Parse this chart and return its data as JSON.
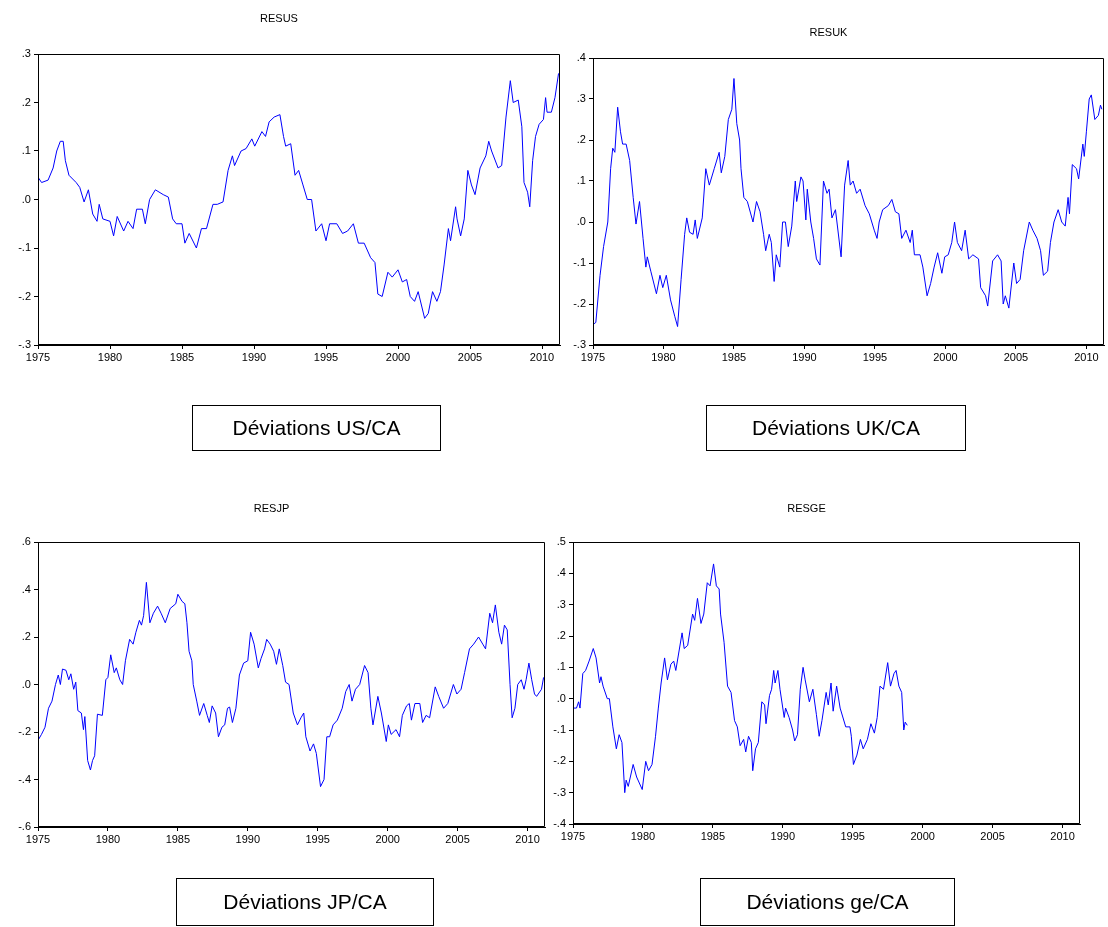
{
  "chart_data": [
    {
      "type": "line",
      "title": "RESUS",
      "annotations": [
        "Déviations US/CA"
      ],
      "color": "#0000ff",
      "xlim": [
        1975,
        2011.25
      ],
      "xticks": [
        1975,
        1980,
        1985,
        1990,
        1995,
        2000,
        2005,
        2010
      ],
      "ylim": [
        -0.3,
        0.3
      ],
      "yticks": [
        {
          "value": -0.3,
          "label": "-.3"
        },
        {
          "value": -0.2,
          "label": "-.2"
        },
        {
          "value": -0.1,
          "label": "-.1"
        },
        {
          "value": 0,
          "label": ".0"
        },
        {
          "value": 0.1,
          "label": ".1"
        },
        {
          "value": 0.2,
          "label": ".2"
        },
        {
          "value": 0.3,
          "label": ".3"
        }
      ],
      "x": [
        1975.0,
        1975.25,
        1975.7,
        1976.05,
        1976.3,
        1976.55,
        1976.75,
        1976.9,
        1977.15,
        1977.65,
        1977.9,
        1978.2,
        1978.5,
        1978.8,
        1979.1,
        1979.25,
        1979.5,
        1980.0,
        1980.25,
        1980.5,
        1980.95,
        1981.25,
        1981.6,
        1981.85,
        1982.25,
        1982.45,
        1982.75,
        1983.15,
        1983.7,
        1984.05,
        1984.35,
        1984.6,
        1985.0,
        1985.2,
        1985.5,
        1986.0,
        1986.35,
        1986.7,
        1987.15,
        1987.45,
        1987.85,
        1988.2,
        1988.5,
        1988.65,
        1989.1,
        1989.45,
        1989.85,
        1990.05,
        1990.55,
        1990.8,
        1991.05,
        1991.4,
        1991.8,
        1992.05,
        1992.2,
        1992.55,
        1992.85,
        1993.1,
        1993.4,
        1993.7,
        1994.0,
        1994.3,
        1994.7,
        1995.0,
        1995.25,
        1995.75,
        1996.15,
        1996.5,
        1996.9,
        1997.25,
        1997.65,
        1998.1,
        1998.4,
        1998.6,
        1998.9,
        1999.3,
        1999.6,
        2000.0,
        2000.3,
        2000.6,
        2000.85,
        2001.15,
        2001.4,
        2001.85,
        2002.1,
        2002.4,
        2002.7,
        2002.95,
        2003.2,
        2003.5,
        2003.65,
        2004.0,
        2004.1,
        2004.35,
        2004.6,
        2004.85,
        2005.1,
        2005.35,
        2005.7,
        2006.1,
        2006.3,
        2006.5,
        2006.95,
        2007.2,
        2007.5,
        2007.8,
        2008.0,
        2008.35,
        2008.6,
        2008.75,
        2009.0,
        2009.15,
        2009.35,
        2009.55,
        2009.8,
        2010.1,
        2010.25,
        2010.35,
        2010.65,
        2010.9,
        2011.15
      ],
      "values": [
        0.046,
        0.035,
        0.04,
        0.065,
        0.1,
        0.12,
        0.12,
        0.08,
        0.05,
        0.035,
        0.025,
        -0.005,
        0.02,
        -0.03,
        -0.045,
        -0.01,
        -0.04,
        -0.045,
        -0.075,
        -0.035,
        -0.065,
        -0.045,
        -0.06,
        -0.02,
        -0.02,
        -0.05,
        0.0,
        0.02,
        0.01,
        0.005,
        -0.04,
        -0.05,
        -0.05,
        -0.09,
        -0.07,
        -0.1,
        -0.06,
        -0.06,
        -0.01,
        -0.01,
        -0.005,
        0.06,
        0.09,
        0.07,
        0.1,
        0.105,
        0.125,
        0.11,
        0.14,
        0.13,
        0.16,
        0.17,
        0.175,
        0.13,
        0.11,
        0.115,
        0.05,
        0.06,
        0.03,
        0.0,
        0.0,
        -0.065,
        -0.05,
        -0.085,
        -0.05,
        -0.05,
        -0.07,
        -0.065,
        -0.05,
        -0.09,
        -0.09,
        -0.12,
        -0.13,
        -0.195,
        -0.2,
        -0.15,
        -0.16,
        -0.145,
        -0.17,
        -0.165,
        -0.2,
        -0.21,
        -0.19,
        -0.245,
        -0.235,
        -0.19,
        -0.21,
        -0.19,
        -0.135,
        -0.06,
        -0.085,
        -0.015,
        -0.04,
        -0.075,
        -0.04,
        0.06,
        0.03,
        0.01,
        0.065,
        0.09,
        0.12,
        0.1,
        0.065,
        0.07,
        0.17,
        0.245,
        0.2,
        0.205,
        0.15,
        0.035,
        0.015,
        -0.015,
        0.08,
        0.13,
        0.155,
        0.165,
        0.21,
        0.18,
        0.18,
        0.21,
        0.26
      ]
    },
    {
      "type": "line",
      "title": "RESUK",
      "annotations": [
        "Déviations UK/CA"
      ],
      "color": "#0000ff",
      "xlim": [
        1975,
        2011.25
      ],
      "xticks": [
        1975,
        1980,
        1985,
        1990,
        1995,
        2000,
        2005,
        2010
      ],
      "ylim": [
        -0.3,
        0.4
      ],
      "yticks": [
        {
          "value": -0.3,
          "label": "-.3"
        },
        {
          "value": -0.2,
          "label": "-.2"
        },
        {
          "value": -0.1,
          "label": "-.1"
        },
        {
          "value": 0,
          "label": ".0"
        },
        {
          "value": 0.1,
          "label": ".1"
        },
        {
          "value": 0.2,
          "label": ".2"
        },
        {
          "value": 0.3,
          "label": ".3"
        },
        {
          "value": 0.4,
          "label": ".4"
        }
      ],
      "x": [
        1975.0,
        1975.2,
        1975.5,
        1975.75,
        1976.05,
        1976.25,
        1976.4,
        1976.55,
        1976.75,
        1976.95,
        1977.1,
        1977.35,
        1977.6,
        1977.85,
        1978.05,
        1978.3,
        1978.55,
        1978.75,
        1978.85,
        1979.1,
        1979.5,
        1979.75,
        1979.95,
        1980.2,
        1980.5,
        1980.8,
        1981.0,
        1981.25,
        1981.5,
        1981.65,
        1981.85,
        1982.1,
        1982.25,
        1982.4,
        1982.75,
        1983.0,
        1983.25,
        1983.6,
        1983.95,
        1984.1,
        1984.35,
        1984.6,
        1984.85,
        1985.0,
        1985.2,
        1985.4,
        1985.5,
        1985.7,
        1985.95,
        1986.35,
        1986.6,
        1986.85,
        1987.1,
        1987.25,
        1987.5,
        1987.65,
        1987.85,
        1988.0,
        1988.25,
        1988.45,
        1988.65,
        1988.85,
        1989.1,
        1989.35,
        1989.45,
        1989.75,
        1989.9,
        1990.1,
        1990.2,
        1990.45,
        1990.65,
        1990.85,
        1991.1,
        1991.35,
        1991.6,
        1991.75,
        1991.95,
        1992.2,
        1992.6,
        1992.85,
        1993.1,
        1993.25,
        1993.45,
        1993.7,
        1993.95,
        1994.3,
        1994.6,
        1994.95,
        1995.15,
        1995.3,
        1995.55,
        1995.95,
        1996.2,
        1996.45,
        1996.7,
        1996.9,
        1997.2,
        1997.5,
        1997.65,
        1997.8,
        1998.2,
        1998.4,
        1998.7,
        1998.95,
        1999.2,
        1999.45,
        1999.75,
        1999.95,
        2000.2,
        2000.45,
        2000.65,
        2000.85,
        2001.15,
        2001.4,
        2001.65,
        2001.95,
        2002.35,
        2002.5,
        2002.85,
        2003.0,
        2003.35,
        2003.7,
        2003.95,
        2004.1,
        2004.25,
        2004.5,
        2004.85,
        2005.05,
        2005.3,
        2005.55,
        2005.95,
        2006.2,
        2006.5,
        2006.75,
        2006.95,
        2007.25,
        2007.45,
        2007.7,
        2008.0,
        2008.25,
        2008.5,
        2008.7,
        2008.8,
        2009.0,
        2009.3,
        2009.45,
        2009.75,
        2009.85,
        2010.0,
        2010.2,
        2010.35,
        2010.6,
        2010.85,
        2011.0,
        2011.1
      ],
      "values": [
        -0.25,
        -0.245,
        -0.13,
        -0.06,
        0.0,
        0.13,
        0.18,
        0.17,
        0.28,
        0.22,
        0.19,
        0.19,
        0.15,
        0.06,
        -0.005,
        0.05,
        -0.04,
        -0.11,
        -0.085,
        -0.12,
        -0.175,
        -0.13,
        -0.16,
        -0.13,
        -0.19,
        -0.23,
        -0.255,
        -0.14,
        -0.03,
        0.01,
        -0.025,
        -0.03,
        0.005,
        -0.04,
        0.01,
        0.13,
        0.09,
        0.13,
        0.17,
        0.12,
        0.16,
        0.25,
        0.275,
        0.35,
        0.24,
        0.2,
        0.13,
        0.06,
        0.05,
        0.0,
        0.05,
        0.025,
        -0.03,
        -0.07,
        -0.03,
        -0.05,
        -0.145,
        -0.08,
        -0.11,
        0.0,
        0.0,
        -0.06,
        -0.01,
        0.1,
        0.05,
        0.11,
        0.1,
        0.005,
        0.08,
        0.0,
        -0.04,
        -0.09,
        -0.105,
        0.1,
        0.07,
        0.08,
        0.01,
        0.03,
        -0.085,
        0.09,
        0.15,
        0.09,
        0.1,
        0.07,
        0.08,
        0.04,
        0.02,
        -0.02,
        -0.04,
        0.0,
        0.03,
        0.04,
        0.055,
        0.025,
        0.02,
        -0.04,
        -0.02,
        -0.05,
        -0.02,
        -0.08,
        -0.08,
        -0.11,
        -0.18,
        -0.15,
        -0.11,
        -0.075,
        -0.125,
        -0.085,
        -0.08,
        -0.05,
        0.0,
        -0.05,
        -0.07,
        -0.02,
        -0.09,
        -0.08,
        -0.09,
        -0.16,
        -0.18,
        -0.205,
        -0.095,
        -0.08,
        -0.095,
        -0.2,
        -0.18,
        -0.21,
        -0.1,
        -0.15,
        -0.14,
        -0.07,
        0.0,
        -0.02,
        -0.04,
        -0.07,
        -0.13,
        -0.12,
        -0.05,
        0.0,
        0.03,
        0.0,
        -0.01,
        0.06,
        0.02,
        0.14,
        0.13,
        0.105,
        0.19,
        0.16,
        0.22,
        0.3,
        0.31,
        0.25,
        0.26,
        0.285,
        0.275
      ]
    },
    {
      "type": "line",
      "title": "RESJP",
      "annotations": [
        "Déviations JP/CA"
      ],
      "color": "#0000ff",
      "xlim": [
        1975,
        2011.25
      ],
      "xticks": [
        1975,
        1980,
        1985,
        1990,
        1995,
        2000,
        2005,
        2010
      ],
      "ylim": [
        -0.6,
        0.6
      ],
      "yticks": [
        {
          "value": -0.6,
          "label": "-.6"
        },
        {
          "value": -0.4,
          "label": "-.4"
        },
        {
          "value": -0.2,
          "label": "-.2"
        },
        {
          "value": 0,
          "label": ".0"
        },
        {
          "value": 0.2,
          "label": ".2"
        },
        {
          "value": 0.4,
          "label": ".4"
        },
        {
          "value": 0.6,
          "label": ".6"
        }
      ],
      "x": [
        1975.0,
        1975.25,
        1975.5,
        1975.75,
        1976.0,
        1976.25,
        1976.45,
        1976.6,
        1976.75,
        1977.0,
        1977.2,
        1977.35,
        1977.55,
        1977.7,
        1977.85,
        1978.1,
        1978.25,
        1978.35,
        1978.55,
        1978.75,
        1978.9,
        1979.05,
        1979.25,
        1979.6,
        1979.85,
        1980.0,
        1980.2,
        1980.45,
        1980.6,
        1980.85,
        1981.05,
        1981.25,
        1981.55,
        1981.8,
        1982.0,
        1982.25,
        1982.4,
        1982.55,
        1982.75,
        1983.0,
        1983.25,
        1983.55,
        1983.8,
        1984.1,
        1984.45,
        1984.85,
        1985.0,
        1985.3,
        1985.5,
        1985.65,
        1985.8,
        1986.0,
        1986.1,
        1986.35,
        1986.55,
        1986.85,
        1987.1,
        1987.25,
        1987.45,
        1987.7,
        1987.9,
        1988.15,
        1988.35,
        1988.55,
        1988.7,
        1988.9,
        1989.15,
        1989.4,
        1989.7,
        1990.0,
        1990.2,
        1990.45,
        1990.75,
        1990.95,
        1991.2,
        1991.35,
        1991.6,
        1991.85,
        1992.05,
        1992.25,
        1992.5,
        1992.7,
        1992.95,
        1993.25,
        1993.55,
        1993.8,
        1994.0,
        1994.15,
        1994.45,
        1994.7,
        1994.9,
        1995.2,
        1995.45,
        1995.65,
        1995.85,
        1996.1,
        1996.4,
        1996.75,
        1997.0,
        1997.25,
        1997.45,
        1997.7,
        1998.0,
        1998.35,
        1998.6,
        1998.8,
        1998.95,
        1999.3,
        1999.55,
        1999.9,
        2000.05,
        2000.25,
        2000.6,
        2000.85,
        2001.05,
        2001.35,
        2001.55,
        2001.7,
        2001.95,
        2002.3,
        2002.5,
        2002.75,
        2003.0,
        2003.4,
        2003.65,
        2004.0,
        2004.3,
        2004.7,
        2004.95,
        2005.25,
        2005.5,
        2005.85,
        2006.15,
        2006.5,
        2006.8,
        2007.0,
        2007.3,
        2007.5,
        2007.7,
        2007.95,
        2008.15,
        2008.35,
        2008.55,
        2008.75,
        2008.9,
        2009.1,
        2009.3,
        2009.55,
        2009.75,
        2009.9,
        2010.1,
        2010.3,
        2010.5,
        2010.65,
        2011.0,
        2011.15
      ],
      "values": [
        -0.235,
        -0.21,
        -0.18,
        -0.1,
        -0.07,
        0.0,
        0.04,
        0.0,
        0.065,
        0.06,
        0.02,
        0.045,
        -0.02,
        0.01,
        -0.11,
        -0.12,
        -0.19,
        -0.135,
        -0.32,
        -0.36,
        -0.32,
        -0.3,
        -0.125,
        -0.13,
        0.02,
        0.03,
        0.125,
        0.05,
        0.07,
        0.02,
        0.0,
        0.1,
        0.19,
        0.17,
        0.22,
        0.27,
        0.25,
        0.29,
        0.43,
        0.26,
        0.3,
        0.33,
        0.3,
        0.26,
        0.32,
        0.34,
        0.38,
        0.35,
        0.34,
        0.26,
        0.14,
        0.1,
        0.0,
        -0.07,
        -0.13,
        -0.08,
        -0.13,
        -0.16,
        -0.09,
        -0.12,
        -0.22,
        -0.18,
        -0.17,
        -0.1,
        -0.095,
        -0.16,
        -0.1,
        0.04,
        0.09,
        0.1,
        0.22,
        0.17,
        0.07,
        0.11,
        0.15,
        0.19,
        0.17,
        0.14,
        0.085,
        0.15,
        0.08,
        0.01,
        0.0,
        -0.12,
        -0.17,
        -0.14,
        -0.12,
        -0.22,
        -0.28,
        -0.25,
        -0.29,
        -0.43,
        -0.4,
        -0.22,
        -0.22,
        -0.17,
        -0.15,
        -0.1,
        -0.03,
        0.0,
        -0.07,
        -0.02,
        0.0,
        0.08,
        0.05,
        -0.1,
        -0.17,
        -0.05,
        -0.12,
        -0.24,
        -0.17,
        -0.21,
        -0.19,
        -0.22,
        -0.13,
        -0.09,
        -0.08,
        -0.15,
        -0.08,
        -0.08,
        -0.16,
        -0.13,
        -0.14,
        -0.01,
        -0.05,
        -0.1,
        -0.08,
        0.0,
        -0.04,
        -0.02,
        0.05,
        0.15,
        0.17,
        0.2,
        0.17,
        0.15,
        0.3,
        0.26,
        0.335,
        0.22,
        0.17,
        0.25,
        0.23,
        0.0,
        -0.14,
        -0.1,
        0.0,
        0.02,
        -0.02,
        0.02,
        0.09,
        0.02,
        -0.04,
        -0.05,
        -0.02,
        0.03
      ]
    },
    {
      "type": "line",
      "title": "RESGE",
      "annotations": [
        "Déviations ge/CA"
      ],
      "color": "#0000ff",
      "xlim": [
        1975,
        2011.25
      ],
      "xticks": [
        1975,
        1980,
        1985,
        1990,
        1995,
        2000,
        2005,
        2010
      ],
      "ylim": [
        -0.4,
        0.5
      ],
      "yticks": [
        {
          "value": -0.4,
          "label": "-.4"
        },
        {
          "value": -0.3,
          "label": "-.3"
        },
        {
          "value": -0.2,
          "label": "-.2"
        },
        {
          "value": -0.1,
          "label": "-.1"
        },
        {
          "value": 0,
          "label": ".0"
        },
        {
          "value": 0.1,
          "label": ".1"
        },
        {
          "value": 0.2,
          "label": ".2"
        },
        {
          "value": 0.3,
          "label": ".3"
        },
        {
          "value": 0.4,
          "label": ".4"
        },
        {
          "value": 0.5,
          "label": ".5"
        }
      ],
      "x": [
        1975.0,
        1975.25,
        1975.4,
        1975.5,
        1975.7,
        1975.9,
        1976.15,
        1976.45,
        1976.65,
        1976.9,
        1977.0,
        1977.15,
        1977.45,
        1977.6,
        1977.85,
        1978.1,
        1978.3,
        1978.5,
        1978.7,
        1978.8,
        1978.95,
        1979.3,
        1979.55,
        1979.95,
        1980.2,
        1980.4,
        1980.65,
        1980.9,
        1981.1,
        1981.3,
        1981.55,
        1981.75,
        1982.0,
        1982.2,
        1982.35,
        1982.8,
        1982.95,
        1983.2,
        1983.55,
        1983.7,
        1983.9,
        1984.15,
        1984.35,
        1984.6,
        1984.8,
        1985.05,
        1985.25,
        1985.45,
        1985.55,
        1985.8,
        1986.05,
        1986.3,
        1986.55,
        1986.75,
        1986.95,
        1987.2,
        1987.35,
        1987.55,
        1987.75,
        1987.85,
        1988.05,
        1988.25,
        1988.5,
        1988.7,
        1988.8,
        1989.05,
        1989.2,
        1989.35,
        1989.45,
        1989.65,
        1989.8,
        1990.1,
        1990.2,
        1990.45,
        1990.7,
        1990.85,
        1991.05,
        1991.25,
        1991.45,
        1991.6,
        1991.9,
        1992.15,
        1992.4,
        1992.6,
        1992.8,
        1993.1,
        1993.25,
        1993.45,
        1993.6,
        1993.85,
        1994.1,
        1994.5,
        1994.8,
        1994.9,
        1995.05,
        1995.3,
        1995.55,
        1995.75,
        1996.05,
        1996.3,
        1996.55,
        1996.75,
        1996.95,
        1997.2,
        1997.5,
        1997.7,
        1997.95,
        1998.1,
        1998.3,
        1998.5,
        1998.65,
        1998.75,
        1998.9
      ],
      "values": [
        -0.03,
        -0.03,
        -0.01,
        -0.03,
        0.08,
        0.09,
        0.12,
        0.16,
        0.13,
        0.05,
        0.07,
        0.04,
        0.0,
        0.0,
        -0.09,
        -0.16,
        -0.115,
        -0.14,
        -0.3,
        -0.26,
        -0.28,
        -0.21,
        -0.25,
        -0.29,
        -0.2,
        -0.23,
        -0.21,
        -0.12,
        -0.03,
        0.05,
        0.13,
        0.06,
        0.11,
        0.12,
        0.09,
        0.21,
        0.16,
        0.17,
        0.27,
        0.25,
        0.32,
        0.24,
        0.27,
        0.37,
        0.36,
        0.43,
        0.36,
        0.35,
        0.27,
        0.18,
        0.04,
        0.02,
        -0.07,
        -0.09,
        -0.15,
        -0.13,
        -0.17,
        -0.12,
        -0.14,
        -0.23,
        -0.16,
        -0.14,
        -0.01,
        -0.02,
        -0.08,
        0.01,
        0.03,
        0.09,
        0.05,
        0.09,
        0.03,
        -0.06,
        -0.03,
        -0.06,
        -0.1,
        -0.135,
        -0.115,
        0.03,
        0.1,
        0.06,
        -0.01,
        0.03,
        -0.05,
        -0.12,
        -0.07,
        0.02,
        -0.02,
        0.05,
        -0.04,
        0.04,
        -0.03,
        -0.09,
        -0.09,
        -0.12,
        -0.21,
        -0.18,
        -0.13,
        -0.16,
        -0.13,
        -0.08,
        -0.11,
        -0.06,
        0.04,
        0.03,
        0.115,
        0.04,
        0.08,
        0.09,
        0.04,
        0.02,
        -0.1,
        -0.075,
        -0.085
      ]
    }
  ]
}
